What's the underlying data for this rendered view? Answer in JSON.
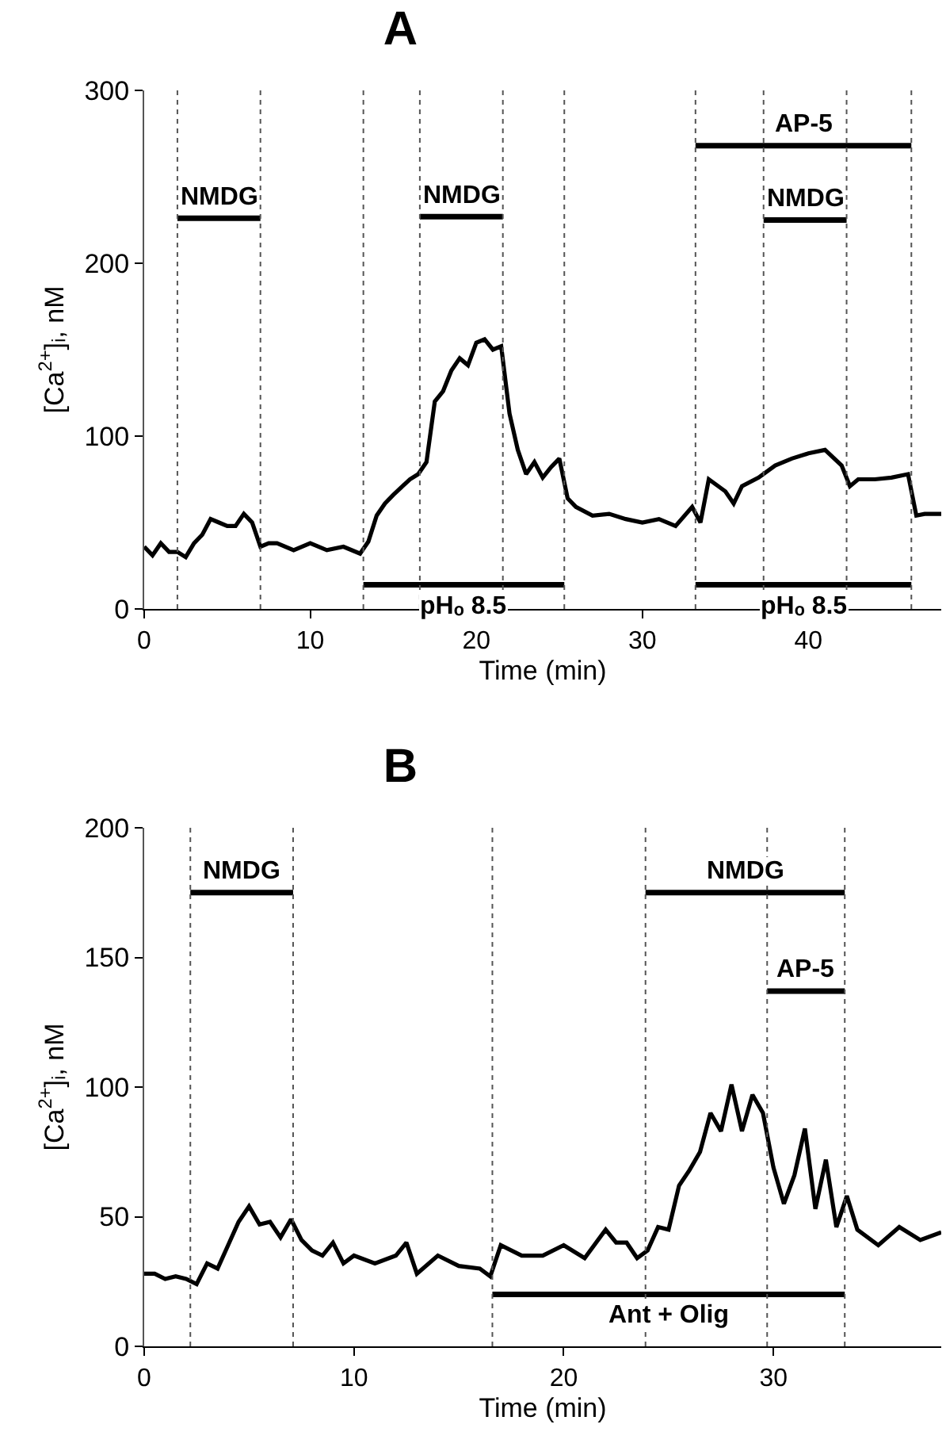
{
  "chart_data": [
    {
      "type": "line",
      "title": "A",
      "xlabel": "Time (min)",
      "ylabel": "[Ca$^{2+}$]ᵢ, nM",
      "x": [
        0,
        0.5,
        1,
        1.5,
        2,
        2.5,
        3,
        3.5,
        4,
        4.5,
        5,
        5.5,
        6,
        6.5,
        7,
        7.5,
        8,
        9,
        10,
        11,
        12,
        13,
        13.5,
        14,
        14.5,
        15,
        16,
        16.5,
        17,
        17.5,
        18,
        18.5,
        19,
        19.5,
        20,
        20.5,
        21,
        21.5,
        22,
        22.5,
        23,
        23.5,
        24,
        24.5,
        25,
        25.5,
        26,
        27,
        28,
        29,
        30,
        31,
        32,
        33,
        33.5,
        34,
        35,
        35.5,
        36,
        37,
        38,
        39,
        40,
        41,
        42,
        42.5,
        43,
        44,
        45,
        46,
        46.5,
        47,
        48
      ],
      "series": [
        {
          "color": "#000000",
          "values": [
            36,
            31,
            38,
            33,
            33,
            30,
            38,
            43,
            52,
            50,
            48,
            48,
            55,
            50,
            36,
            38,
            38,
            34,
            38,
            34,
            36,
            32,
            39,
            54,
            61,
            66,
            75,
            78,
            85,
            120,
            126,
            138,
            145,
            141,
            154,
            156,
            150,
            152,
            113,
            92,
            78,
            85,
            76,
            82,
            87,
            64,
            59,
            54,
            55,
            52,
            50,
            52,
            48,
            59,
            50,
            75,
            68,
            61,
            71,
            76,
            83,
            87,
            90,
            92,
            83,
            71,
            75,
            75,
            76,
            78,
            54,
            55,
            55
          ]
        },
        {
          "name": "NMDG",
          "color": "#000000",
          "x": [
            2,
            7
          ],
          "values": [
            226,
            226
          ]
        },
        {
          "name": "NMDG",
          "color": "#000000",
          "x": [
            16.6,
            21.6
          ],
          "values": [
            227,
            227
          ]
        },
        {
          "name": "AP-5",
          "color": "#000000",
          "x": [
            33.2,
            46.2
          ],
          "values": [
            268,
            268
          ]
        },
        {
          "name": "NMDG",
          "color": "#000000",
          "x": [
            37.3,
            42.3
          ],
          "values": [
            225,
            225
          ]
        },
        {
          "name": "pHₒ 8.5",
          "color": "#000000",
          "x": [
            13.2,
            25.3
          ],
          "values": [
            14,
            14
          ]
        },
        {
          "name": "pHₒ 8.5",
          "color": "#000000",
          "x": [
            33.2,
            46.2
          ],
          "values": [
            14,
            14
          ]
        }
      ],
      "xlim": [
        0,
        48
      ],
      "ylim": [
        0,
        300
      ],
      "xticks": [
        0,
        10,
        20,
        30,
        40
      ],
      "yticks": [
        0,
        100,
        200,
        300
      ],
      "grid": false,
      "legend": false,
      "marker": "none",
      "line_style": "solid",
      "ref_lines": [
        {
          "axis": "x",
          "value": 2,
          "color": "#555555",
          "line_style": "dotted"
        },
        {
          "axis": "x",
          "value": 7,
          "color": "#555555",
          "line_style": "dotted"
        },
        {
          "axis": "x",
          "value": 13.2,
          "color": "#555555",
          "line_style": "dotted"
        },
        {
          "axis": "x",
          "value": 16.6,
          "color": "#555555",
          "line_style": "dotted"
        },
        {
          "axis": "x",
          "value": 21.6,
          "color": "#555555",
          "line_style": "dotted"
        },
        {
          "axis": "x",
          "value": 25.3,
          "color": "#555555",
          "line_style": "dotted"
        },
        {
          "axis": "x",
          "value": 33.2,
          "color": "#555555",
          "line_style": "dotted"
        },
        {
          "axis": "x",
          "value": 37.3,
          "color": "#555555",
          "line_style": "dotted"
        },
        {
          "axis": "x",
          "value": 42.3,
          "color": "#555555",
          "line_style": "dotted"
        },
        {
          "axis": "x",
          "value": 46.2,
          "color": "#555555",
          "line_style": "dotted"
        }
      ]
    },
    {
      "type": "line",
      "title": "B",
      "xlabel": "Time (min)",
      "ylabel": "[Ca$^{2+}$]ᵢ, nM",
      "x": [
        0,
        0.5,
        1,
        1.5,
        2,
        2.5,
        3,
        3.5,
        4,
        4.5,
        5,
        5.5,
        6,
        6.5,
        7,
        7.5,
        8,
        8.5,
        9,
        9.5,
        10,
        11,
        12,
        12.5,
        13,
        14,
        15,
        16,
        16.5,
        17,
        18,
        19,
        20,
        21,
        22,
        22.5,
        23,
        23.5,
        24,
        24.5,
        25,
        25.5,
        26,
        26.5,
        27,
        27.5,
        28,
        28.5,
        29,
        29.5,
        30,
        30.5,
        31,
        31.5,
        32,
        32.5,
        33,
        33.5,
        34,
        35,
        36,
        37,
        38
      ],
      "series": [
        {
          "color": "#000000",
          "values": [
            28,
            28,
            26,
            27,
            26,
            24,
            32,
            30,
            39,
            48,
            54,
            47,
            48,
            42,
            49,
            41,
            37,
            35,
            40,
            32,
            35,
            32,
            35,
            40,
            28,
            35,
            31,
            30,
            27,
            39,
            35,
            35,
            39,
            34,
            45,
            40,
            40,
            34,
            37,
            46,
            45,
            62,
            68,
            75,
            90,
            83,
            101,
            83,
            97,
            90,
            69,
            55,
            66,
            84,
            53,
            72,
            46,
            58,
            45,
            39,
            46,
            41,
            44
          ]
        },
        {
          "name": "NMDG",
          "color": "#000000",
          "x": [
            2.2,
            7.1
          ],
          "values": [
            175,
            175
          ]
        },
        {
          "name": "NMDG",
          "color": "#000000",
          "x": [
            23.9,
            33.4
          ],
          "values": [
            175,
            175
          ]
        },
        {
          "name": "AP-5",
          "color": "#000000",
          "x": [
            29.7,
            33.4
          ],
          "values": [
            137,
            137
          ]
        },
        {
          "name": "Ant + Olig",
          "color": "#000000",
          "x": [
            16.6,
            33.4
          ],
          "values": [
            20,
            20
          ]
        }
      ],
      "xlim": [
        0,
        38
      ],
      "ylim": [
        0,
        200
      ],
      "xticks": [
        0,
        10,
        20,
        30
      ],
      "yticks": [
        0,
        50,
        100,
        150,
        200
      ],
      "grid": false,
      "legend": false,
      "marker": "none",
      "line_style": "solid",
      "ref_lines": [
        {
          "axis": "x",
          "value": 2.2,
          "color": "#555555",
          "line_style": "dotted"
        },
        {
          "axis": "x",
          "value": 7.1,
          "color": "#555555",
          "line_style": "dotted"
        },
        {
          "axis": "x",
          "value": 16.6,
          "color": "#555555",
          "line_style": "dotted"
        },
        {
          "axis": "x",
          "value": 23.9,
          "color": "#555555",
          "line_style": "dotted"
        },
        {
          "axis": "x",
          "value": 29.7,
          "color": "#555555",
          "line_style": "dotted"
        },
        {
          "axis": "x",
          "value": 33.4,
          "color": "#555555",
          "line_style": "dotted"
        }
      ]
    }
  ]
}
